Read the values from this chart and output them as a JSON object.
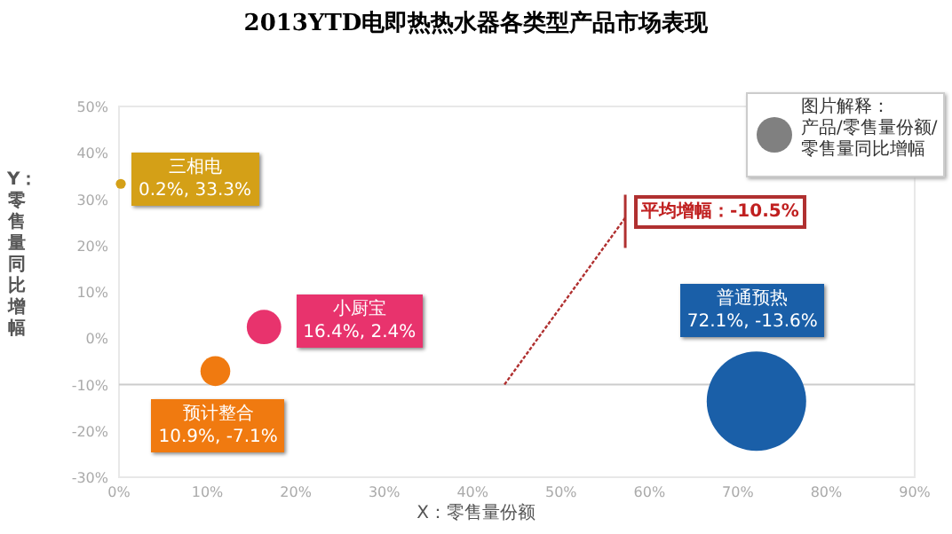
{
  "chart_data": {
    "type": "bubble",
    "title": "2013YTD电即热热水器各类型产品市场表现",
    "xlabel": "X：零售量份额",
    "ylabel": "Y：零售量同比增幅",
    "annotations": [
      {
        "text": "平均增幅：-10.5%",
        "x": 43.6,
        "y": -10
      },
      "图片解释：",
      "产品/零售量份额/零售量同比增幅"
    ],
    "xlim": [
      0,
      90
    ],
    "ylim": [
      -30,
      50
    ],
    "xticks": [
      {
        "value": 0,
        "label": "0%"
      },
      {
        "value": 10,
        "label": "10%"
      },
      {
        "value": 20,
        "label": "20%"
      },
      {
        "value": 30,
        "label": "30%"
      },
      {
        "value": 40,
        "label": "40%"
      },
      {
        "value": 50,
        "label": "50%"
      },
      {
        "value": 60,
        "label": "60%"
      },
      {
        "value": 70,
        "label": "70%"
      },
      {
        "value": 80,
        "label": "80%"
      },
      {
        "value": 90,
        "label": "90%"
      }
    ],
    "yticks": [
      {
        "value": -30,
        "label": "-30%"
      },
      {
        "value": -20,
        "label": "-20%"
      },
      {
        "value": -10,
        "label": "-10%"
      },
      {
        "value": 0,
        "label": "0%"
      },
      {
        "value": 10,
        "label": "10%"
      },
      {
        "value": 20,
        "label": "20%"
      },
      {
        "value": 30,
        "label": "30%"
      },
      {
        "value": 40,
        "label": "40%"
      },
      {
        "value": 50,
        "label": "50%"
      }
    ],
    "series": [
      {
        "name": "三相电",
        "color": "#d4a017",
        "x": [
          0.2
        ],
        "values": [
          33.3
        ],
        "sizes": [
          0.01
        ],
        "value_labels": [
          "0.2%, 33.3%"
        ]
      },
      {
        "name": "小厨宝",
        "color": "#e8336d",
        "x": [
          16.4
        ],
        "values": [
          2.4
        ],
        "sizes": [
          0.12
        ],
        "value_labels": [
          "16.4%, 2.4%"
        ]
      },
      {
        "name": "预计整合",
        "color": "#f07a10",
        "x": [
          10.9
        ],
        "values": [
          -7.1
        ],
        "sizes": [
          0.09
        ],
        "value_labels": [
          "10.9%, -7.1%"
        ]
      },
      {
        "name": "普通预热",
        "color": "#1a5fa8",
        "x": [
          72.1
        ],
        "values": [
          -13.6
        ],
        "sizes": [
          1
        ],
        "value_labels": [
          "72.1%, -13.6%"
        ]
      }
    ],
    "ref_lines": [
      {
        "axis": "y",
        "value": -10,
        "color": "#cccccc"
      }
    ]
  }
}
